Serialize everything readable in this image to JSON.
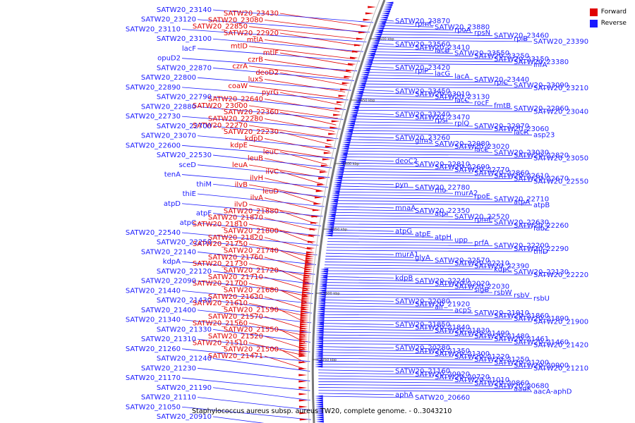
{
  "caption": "Staphylococcus aureus subsp. aureus TW20, complete genome. - 0..3043210",
  "legend": [
    {
      "label": "Forward",
      "color": "#e00000"
    },
    {
      "label": "Reverse",
      "color": "#1a1aff"
    }
  ],
  "colors": {
    "forward": "#e00000",
    "reverse": "#1a1aff",
    "backbone": "#888888"
  },
  "scale_ticks": [
    "2500 kbp",
    "2450 kbp",
    "2400 kbp",
    "2350 kbp",
    "2300 kbp",
    "2250 kbp"
  ],
  "forward_labels": [
    "SATW20_23430",
    "SATW20_23080",
    "SATW20_22850",
    "SATW20_22920",
    "mtlA",
    "mtlD",
    "mtlF",
    "czrB",
    "czrA",
    "deoD2",
    "luxS",
    "coaW",
    "pyrG",
    "SATW20_22640",
    "SATW20_23000",
    "SATW20_22360",
    "SATW20_22280",
    "SATW20_22270",
    "SATW20_22230",
    "kdpD",
    "kdpE",
    "leuC",
    "leuB",
    "leuA",
    "ilvC",
    "ilvH",
    "ilvB",
    "leuD",
    "ilvA",
    "ilvD",
    "SATW20_21880",
    "SATW20_21870",
    "SATW20_21810",
    "SATW20_21800",
    "SATW20_21820",
    "SATW20_21750",
    "SATW20_21740",
    "SATW20_21760",
    "SATW20_21730",
    "SATW20_21720",
    "SATW20_21710",
    "SATW20_21700",
    "SATW20_21680",
    "SATW20_21630",
    "SATW20_21610",
    "SATW20_21590",
    "SATW20_21570",
    "SATW20_21560",
    "SATW20_21550",
    "SATW20_21520",
    "SATW20_21510",
    "SATW20_21500",
    "SATW20_21471"
  ],
  "reverse_left_labels": [
    "SATW20_23140",
    "SATW20_23120",
    "SATW20_23110",
    "SATW20_23100",
    "lacF",
    "opuD2",
    "SATW20_22870",
    "SATW20_22800",
    "SATW20_22890",
    "SATW20_22790",
    "SATW20_22880",
    "SATW20_22730",
    "SATW20_22700",
    "SATW20_23070",
    "SATW20_22600",
    "SATW20_22530",
    "sceD",
    "tenA",
    "thiM",
    "thiE",
    "atpD",
    "atpF",
    "atpC",
    "SATW20_22540",
    "SATW20_22250",
    "SATW20_22140",
    "kdpA",
    "SATW20_22120",
    "SATW20_22090",
    "SATW20_21440",
    "SATW20_21430",
    "SATW20_21400",
    "SATW20_21340",
    "SATW20_21330",
    "SATW20_21310",
    "SATW20_21260",
    "SATW20_21240",
    "SATW20_21230",
    "SATW20_21170",
    "SATW20_21190",
    "SATW20_21110",
    "SATW20_21050",
    "SATW20_20910"
  ],
  "reverse_right_labels": [
    "SATW20_23870",
    "rpmC",
    "SATW20_23880",
    "rpoA",
    "rpsN",
    "SATW20_23460",
    "rplB",
    "SATW20_23390",
    "SATW20_23560",
    "SATW20_23410",
    "lacB",
    "SATW20_23550",
    "SATW20_23250",
    "SATW20_23150",
    "SATW20_23380",
    "infA",
    "SATW20_23420",
    "rplP",
    "lacG",
    "lacA",
    "SATW20_23440",
    "rplC",
    "SATW20_23090",
    "SATW20_23210",
    "SATW20_23450",
    "SATW20_23010",
    "SATW20_23130",
    "lacC",
    "rocF",
    "fmtB",
    "SATW20_22960",
    "SATW20_23040",
    "SATW20_23240",
    "SATW20_23470",
    "rpsI",
    "rplQ",
    "SATW20_22970",
    "SATW20_23060",
    "lacR",
    "asp23",
    "SATW20_23260",
    "glmS",
    "SATW20_22980",
    "SATW20_23020",
    "lacE",
    "SATW20_23030",
    "SATW20_22820",
    "SATW20_23050",
    "deoC2",
    "SATW20_22810",
    "SATW20_22690",
    "SATW20_22770",
    "SATW20_22860",
    "SATW20_22610",
    "SATW20_22670",
    "SATW20_22550",
    "pyn",
    "SATW20_22780",
    "rho",
    "murA2",
    "rpoE",
    "SATW20_22710",
    "atpA",
    "atpB",
    "mnaA",
    "SATW20_22350",
    "atpI",
    "SATW20_22520",
    "rpmE",
    "SATW20_22630",
    "SATW20_22260",
    "fabZ",
    "atpG",
    "atpE",
    "atpH",
    "upp",
    "prfA",
    "SATW20_22200",
    "SATW20_22290",
    "thiD",
    "murA1",
    "glyA",
    "SATW20_22570",
    "SATW20_22210",
    "SATW20_22390",
    "kdpC",
    "SATW20_22130",
    "SATW20_22220",
    "kdpB",
    "SATW20_22240",
    "SATW20_22020",
    "SATW20_22030",
    "sigB",
    "rsbW",
    "rsbV",
    "rsbU",
    "SATW20_22080",
    "SATW20_21920",
    "alr",
    "acpS",
    "SATW20_21910",
    "SATW20_21860",
    "SATW20_21890",
    "SATW20_21900",
    "SATW20_21850",
    "SATW20_21840",
    "SATW20_21830",
    "SATW20_21490",
    "SATW20_21480",
    "SATW20_21461",
    "SATW20_21460",
    "SATW20_21420",
    "SATW20_20280",
    "SATW20_21350",
    "SATW20_21300",
    "SATW20_21220",
    "SATW20_21250",
    "SATW20_21200",
    "SATW20_20900",
    "SATW20_21210",
    "SATW20_21160",
    "SATW20_20920",
    "SATW20_20720",
    "SATW20_21010",
    "SATW20_20860",
    "SATW20_20680",
    "aadK",
    "aacA-aphD",
    "aphA",
    "SATW20_20660"
  ]
}
